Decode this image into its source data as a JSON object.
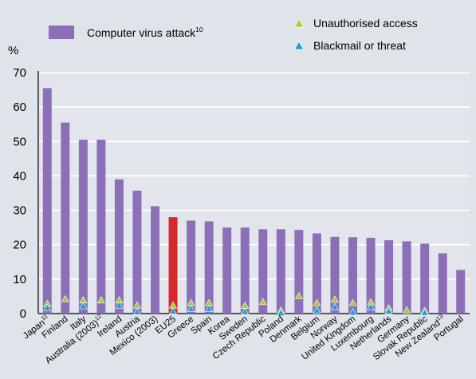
{
  "chart_data": {
    "type": "bar",
    "ylabel": "%",
    "ylim": [
      0,
      70
    ],
    "yticks": [
      "0",
      "10",
      "20",
      "30",
      "40",
      "50",
      "60",
      "70"
    ],
    "grid": true,
    "legend_position": "top",
    "categories": [
      {
        "name": "Japan",
        "sup": "11"
      },
      {
        "name": "Finland",
        "sup": ""
      },
      {
        "name": "Italy",
        "sup": ""
      },
      {
        "name": "Australia (2003)",
        "sup": "12"
      },
      {
        "name": "Ireland",
        "sup": ""
      },
      {
        "name": "Austria",
        "sup": ""
      },
      {
        "name": "Mexico (2003)",
        "sup": ""
      },
      {
        "name": "EU25",
        "sup": ""
      },
      {
        "name": "Greece",
        "sup": ""
      },
      {
        "name": "Spain",
        "sup": ""
      },
      {
        "name": "Korea",
        "sup": ""
      },
      {
        "name": "Sweden",
        "sup": ""
      },
      {
        "name": "Czech Republic",
        "sup": ""
      },
      {
        "name": "Poland",
        "sup": ""
      },
      {
        "name": "Denmark",
        "sup": ""
      },
      {
        "name": "Belgium",
        "sup": ""
      },
      {
        "name": "Norway",
        "sup": ""
      },
      {
        "name": "United Kingdom",
        "sup": ""
      },
      {
        "name": "Luxembourg",
        "sup": ""
      },
      {
        "name": "Netherlands",
        "sup": ""
      },
      {
        "name": "Germany",
        "sup": ""
      },
      {
        "name": "Slovak Republic",
        "sup": ""
      },
      {
        "name": "New Zealand",
        "sup": "13"
      },
      {
        "name": "Portugal",
        "sup": ""
      }
    ],
    "highlight_category": "EU25",
    "series": [
      {
        "name": "Computer virus attack",
        "name_sup": "10",
        "marker": "bar",
        "color": "#8c6fb8",
        "highlight_color": "#d7282b",
        "values": [
          65.5,
          55.5,
          50.5,
          50.5,
          39,
          35.7,
          31.2,
          28,
          27,
          26.8,
          25,
          25,
          24.5,
          24.5,
          24.3,
          23.3,
          22.3,
          22.2,
          22,
          21.3,
          21,
          20.3,
          17.5,
          12.7
        ]
      },
      {
        "name": "Unauthorised access",
        "name_sup": "",
        "marker": "triangle",
        "color": "#a9cc35",
        "values": [
          3.0,
          4.3,
          4.0,
          4.0,
          4.0,
          2.5,
          null,
          2.5,
          3.2,
          3.2,
          null,
          2.4,
          3.5,
          1.0,
          5.2,
          3.2,
          4.2,
          3.2,
          3.4,
          1.7,
          1.1,
          0.9,
          null,
          null
        ]
      },
      {
        "name": "Blackmail or threat",
        "name_sup": "",
        "marker": "triangle",
        "color": "#1aa3cf",
        "values": [
          1.8,
          null,
          2.3,
          null,
          2.5,
          0.6,
          null,
          0.8,
          1.5,
          1.5,
          null,
          0.7,
          null,
          0.3,
          null,
          1.0,
          2.0,
          0.5,
          2.0,
          0.8,
          null,
          0.4,
          null,
          null
        ]
      }
    ]
  }
}
